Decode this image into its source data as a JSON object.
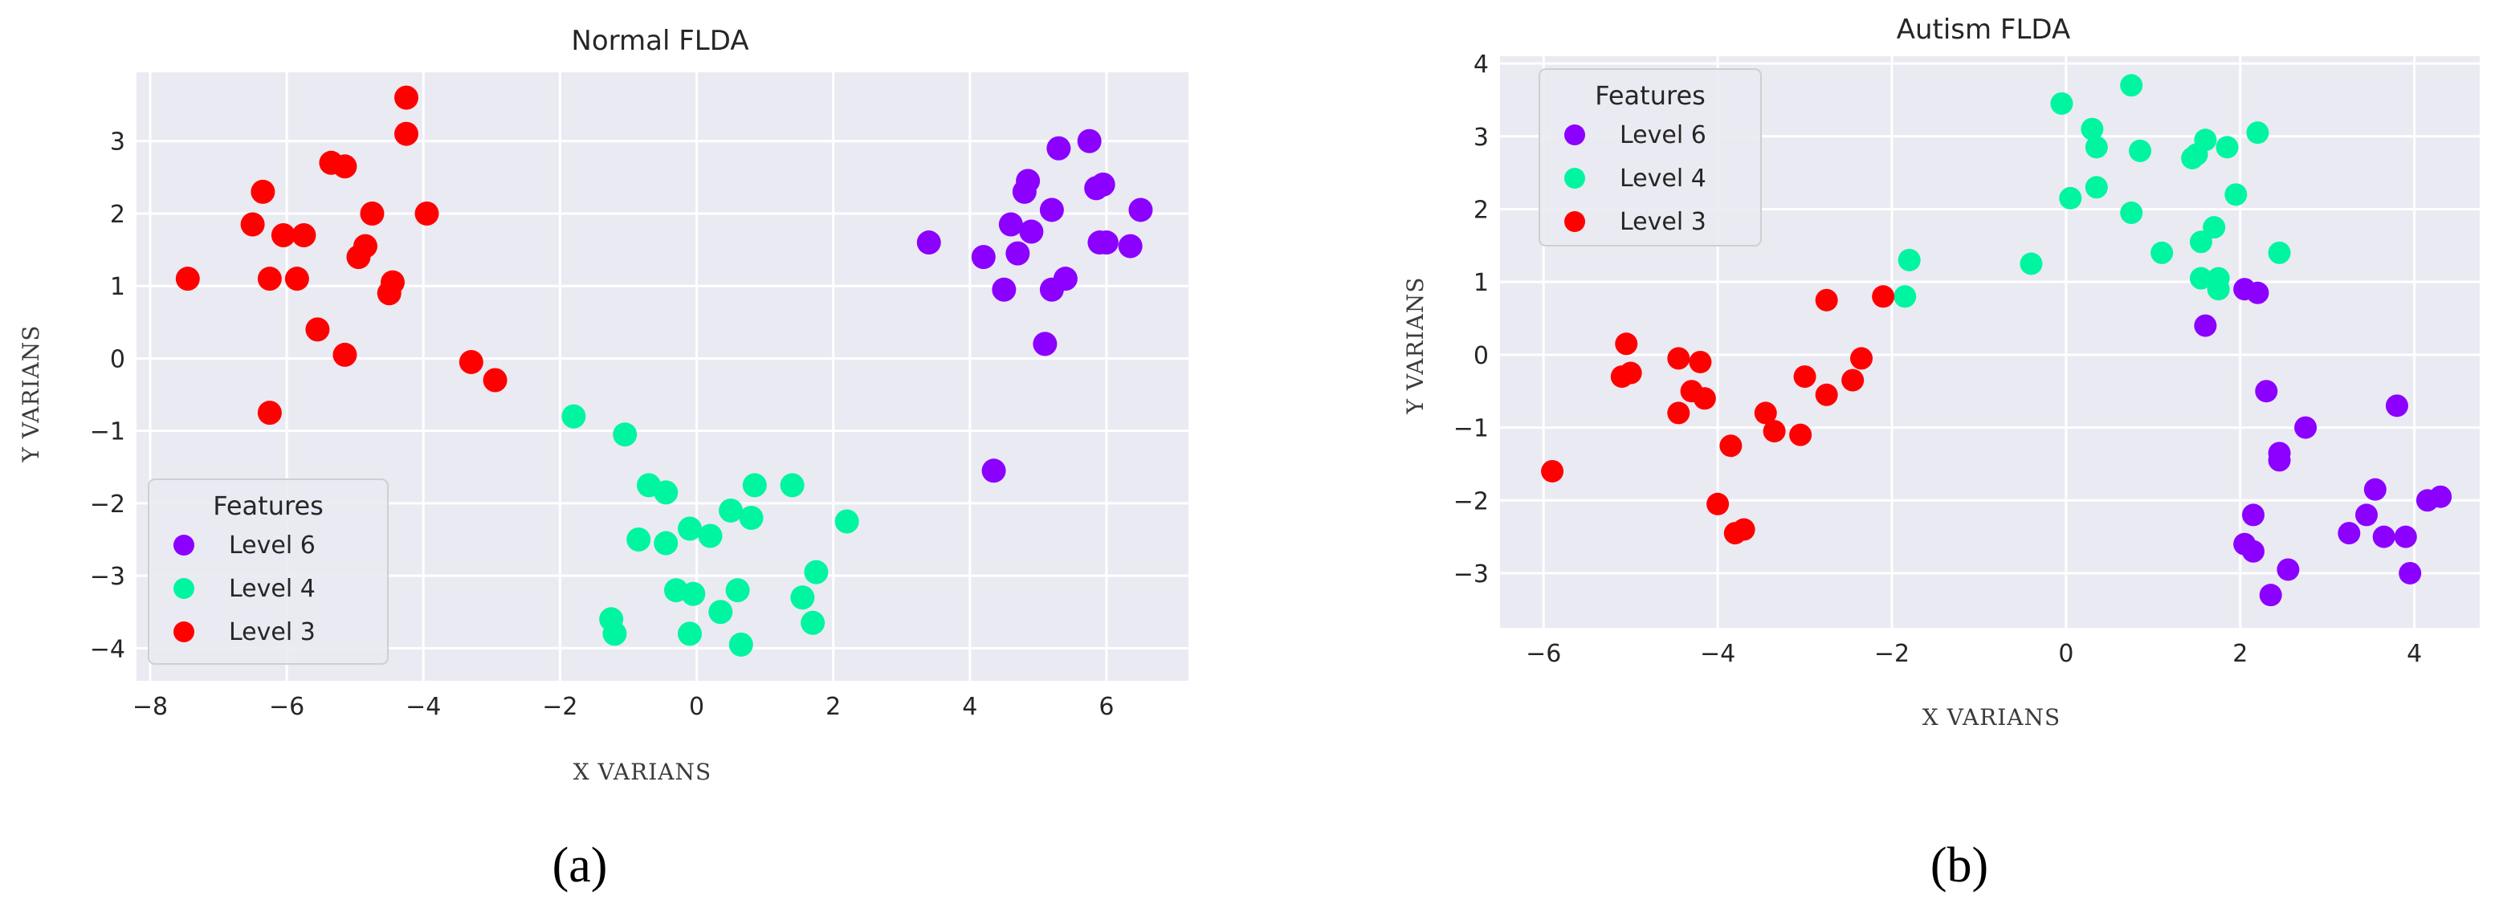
{
  "chart_data": [
    {
      "type": "scatter",
      "panel_label": "(a)",
      "title": "Normal FLDA",
      "xlabel": "X VARIANS",
      "ylabel": "Y VARIANS",
      "xlim": [
        -8.2,
        7.2
      ],
      "ylim": [
        -4.45,
        3.95
      ],
      "xticks": [
        -8,
        -6,
        -4,
        -2,
        0,
        2,
        4,
        6
      ],
      "yticks": [
        -4,
        -3,
        -2,
        -1,
        0,
        1,
        2,
        3
      ],
      "grid": true,
      "legend_title": "Features",
      "legend_position": "lower-left",
      "series": [
        {
          "name": "Level 6",
          "color": "#8b00ff",
          "points": [
            [
              3.4,
              1.6
            ],
            [
              4.2,
              1.4
            ],
            [
              4.5,
              0.95
            ],
            [
              4.6,
              1.85
            ],
            [
              4.7,
              1.45
            ],
            [
              4.8,
              2.3
            ],
            [
              4.85,
              2.45
            ],
            [
              4.9,
              1.75
            ],
            [
              5.1,
              0.2
            ],
            [
              5.2,
              2.05
            ],
            [
              5.2,
              0.95
            ],
            [
              5.3,
              2.9
            ],
            [
              5.4,
              1.1
            ],
            [
              5.75,
              3.0
            ],
            [
              5.85,
              2.35
            ],
            [
              5.9,
              1.6
            ],
            [
              5.95,
              2.4
            ],
            [
              6.0,
              1.6
            ],
            [
              6.35,
              1.55
            ],
            [
              6.5,
              2.05
            ],
            [
              4.35,
              -1.55
            ]
          ]
        },
        {
          "name": "Level 4",
          "color": "#00f5a0",
          "points": [
            [
              -1.8,
              -0.8
            ],
            [
              -1.05,
              -1.05
            ],
            [
              -0.7,
              -1.75
            ],
            [
              -0.45,
              -1.85
            ],
            [
              -0.85,
              -2.5
            ],
            [
              -0.45,
              -2.55
            ],
            [
              -0.1,
              -2.35
            ],
            [
              0.2,
              -2.45
            ],
            [
              0.5,
              -2.1
            ],
            [
              0.8,
              -2.2
            ],
            [
              0.85,
              -1.75
            ],
            [
              1.4,
              -1.75
            ],
            [
              2.2,
              -2.25
            ],
            [
              -0.3,
              -3.2
            ],
            [
              -0.05,
              -3.25
            ],
            [
              0.35,
              -3.5
            ],
            [
              0.6,
              -3.2
            ],
            [
              1.55,
              -3.3
            ],
            [
              1.75,
              -2.95
            ],
            [
              1.7,
              -3.65
            ],
            [
              -1.25,
              -3.6
            ],
            [
              -1.2,
              -3.8
            ],
            [
              -0.1,
              -3.8
            ],
            [
              0.65,
              -3.95
            ]
          ]
        },
        {
          "name": "Level 3",
          "color": "#ff0000",
          "points": [
            [
              -7.45,
              1.1
            ],
            [
              -6.5,
              1.85
            ],
            [
              -6.35,
              2.3
            ],
            [
              -6.25,
              1.1
            ],
            [
              -6.05,
              1.7
            ],
            [
              -5.85,
              1.1
            ],
            [
              -5.75,
              1.7
            ],
            [
              -5.55,
              0.4
            ],
            [
              -5.35,
              2.7
            ],
            [
              -5.15,
              2.65
            ],
            [
              -5.15,
              0.05
            ],
            [
              -4.95,
              1.4
            ],
            [
              -4.85,
              1.55
            ],
            [
              -4.75,
              2.0
            ],
            [
              -4.5,
              0.9
            ],
            [
              -4.45,
              1.05
            ],
            [
              -4.25,
              3.6
            ],
            [
              -4.25,
              3.1
            ],
            [
              -3.95,
              2.0
            ],
            [
              -6.25,
              -0.75
            ],
            [
              -3.3,
              -0.05
            ],
            [
              -2.95,
              -0.3
            ]
          ]
        }
      ]
    },
    {
      "type": "scatter",
      "panel_label": "(b)",
      "title": "Autism FLDA",
      "xlabel": "X VARIANS",
      "ylabel": "Y VARIANS",
      "xlim": [
        -6.5,
        4.75
      ],
      "ylim": [
        -3.75,
        4.1
      ],
      "xticks": [
        -6,
        -4,
        -2,
        0,
        2,
        4
      ],
      "yticks": [
        -3,
        -2,
        -1,
        0,
        1,
        2,
        3,
        4
      ],
      "grid": true,
      "legend_title": "Features",
      "legend_position": "upper-left",
      "series": [
        {
          "name": "Level 6",
          "color": "#8b00ff",
          "points": [
            [
              1.6,
              0.4
            ],
            [
              2.05,
              0.9
            ],
            [
              2.2,
              0.85
            ],
            [
              2.3,
              -0.5
            ],
            [
              2.45,
              -1.35
            ],
            [
              2.45,
              -1.45
            ],
            [
              2.75,
              -1.0
            ],
            [
              2.15,
              -2.2
            ],
            [
              2.05,
              -2.6
            ],
            [
              2.15,
              -2.7
            ],
            [
              2.55,
              -2.95
            ],
            [
              2.35,
              -3.3
            ],
            [
              3.25,
              -2.45
            ],
            [
              3.45,
              -2.2
            ],
            [
              3.55,
              -1.85
            ],
            [
              3.65,
              -2.5
            ],
            [
              3.8,
              -0.7
            ],
            [
              3.9,
              -2.5
            ],
            [
              3.95,
              -3.0
            ],
            [
              4.15,
              -2.0
            ],
            [
              4.3,
              -1.95
            ]
          ]
        },
        {
          "name": "Level 4",
          "color": "#00f5a0",
          "points": [
            [
              -1.85,
              0.8
            ],
            [
              -1.8,
              1.3
            ],
            [
              -0.4,
              1.25
            ],
            [
              -0.05,
              3.45
            ],
            [
              0.05,
              2.15
            ],
            [
              0.3,
              3.1
            ],
            [
              0.35,
              2.85
            ],
            [
              0.35,
              2.3
            ],
            [
              0.75,
              3.7
            ],
            [
              0.75,
              1.95
            ],
            [
              0.85,
              2.8
            ],
            [
              1.1,
              1.4
            ],
            [
              1.45,
              2.7
            ],
            [
              1.5,
              2.75
            ],
            [
              1.55,
              1.55
            ],
            [
              1.55,
              1.05
            ],
            [
              1.6,
              2.95
            ],
            [
              1.7,
              1.75
            ],
            [
              1.75,
              1.05
            ],
            [
              1.75,
              0.9
            ],
            [
              1.85,
              2.85
            ],
            [
              1.95,
              2.2
            ],
            [
              2.2,
              3.05
            ],
            [
              2.45,
              1.4
            ]
          ]
        },
        {
          "name": "Level 3",
          "color": "#ff0000",
          "points": [
            [
              -5.9,
              -1.6
            ],
            [
              -5.1,
              -0.3
            ],
            [
              -5.05,
              0.15
            ],
            [
              -5.0,
              -0.25
            ],
            [
              -4.45,
              -0.05
            ],
            [
              -4.45,
              -0.8
            ],
            [
              -4.3,
              -0.5
            ],
            [
              -4.2,
              -0.1
            ],
            [
              -4.15,
              -0.6
            ],
            [
              -4.0,
              -2.05
            ],
            [
              -3.85,
              -1.25
            ],
            [
              -3.8,
              -2.45
            ],
            [
              -3.7,
              -2.4
            ],
            [
              -3.45,
              -0.8
            ],
            [
              -3.35,
              -1.05
            ],
            [
              -3.05,
              -1.1
            ],
            [
              -3.0,
              -0.3
            ],
            [
              -2.75,
              -0.55
            ],
            [
              -2.75,
              0.75
            ],
            [
              -2.45,
              -0.35
            ],
            [
              -2.35,
              -0.05
            ],
            [
              -2.1,
              0.8
            ]
          ]
        }
      ]
    }
  ]
}
